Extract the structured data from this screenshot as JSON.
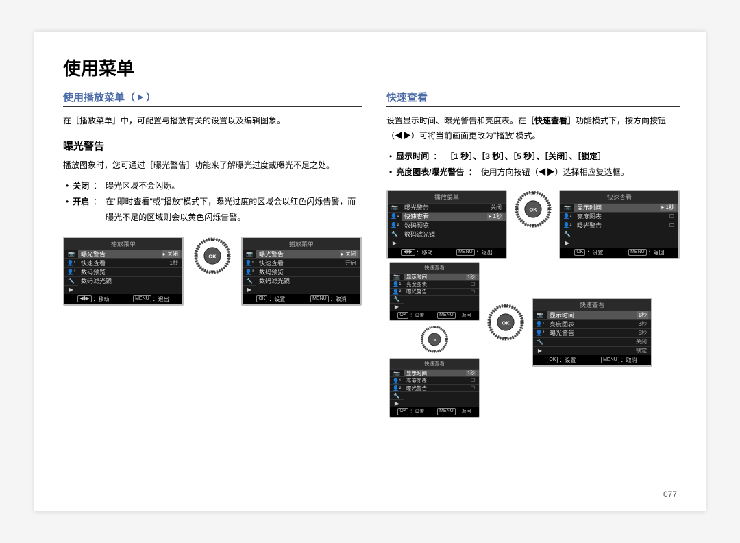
{
  "page": {
    "number": "077"
  },
  "title": "使用菜单",
  "left": {
    "section_title_prefix": "使用播放菜单（",
    "section_title_suffix": "）",
    "intro": "在［播放菜单］中，可配置与播放有关的设置以及编辑图象。",
    "sub_title": "曝光警告",
    "sub_intro": "播放图象时，您可通过［曝光警告］功能来了解曝光过度或曝光不足之处。",
    "bullets": [
      {
        "label": "关闭",
        "colon": "：",
        "text": "曝光区域不会闪烁。"
      },
      {
        "label": "开启",
        "colon": "：",
        "text": "在\"即时查看\"或\"播放\"模式下，曝光过度的区域会以红色闪烁告警，而曝光不足的区域则会以黄色闪烁告警。"
      }
    ]
  },
  "right": {
    "section_title": "快速查看",
    "intro_pre": "设置显示时间、曝光警告和亮度表。在",
    "intro_bold": "［快速查看］",
    "intro_mid": "功能模式下，按方向按钮（",
    "intro_post": "）可将当前画面更改为\"播放\"模式。",
    "bullets": [
      {
        "label": "显示时间",
        "colon": "：",
        "value": "［1 秒］、［3 秒］、［5 秒］、［关闭］、［锁定］"
      },
      {
        "label": "亮度图表/曝光警告",
        "colon": "：",
        "value_pre": "使用方向按钮（",
        "value_post": "）选择相应复选框。"
      }
    ]
  },
  "menus": {
    "playback_a": {
      "header": "播放菜单",
      "rows": [
        {
          "label": "曝光警告",
          "val": "关闭",
          "highlight": true,
          "mark": "▸"
        },
        {
          "label": "快速查看",
          "val": "1秒"
        },
        {
          "label": "数码预览",
          "val": ""
        },
        {
          "label": "数码滤光镜",
          "val": ""
        }
      ],
      "footer_left_badge": "◀⧫▶",
      "footer_left": "：移动",
      "footer_right_badge": "MENU",
      "footer_right": "：退出"
    },
    "playback_b": {
      "header": "播放菜单",
      "rows": [
        {
          "label": "曝光警告",
          "val": "关闭",
          "highlight": true,
          "mark": "▸"
        },
        {
          "label": "快速查看",
          "val": "开启"
        },
        {
          "label": "数码预览",
          "val": ""
        },
        {
          "label": "数码滤光镜",
          "val": ""
        }
      ],
      "footer_left_badge": "OK",
      "footer_left": "：设置",
      "footer_right_badge": "MENU",
      "footer_right": "：取消"
    },
    "playback_c": {
      "header": "播放菜单",
      "rows": [
        {
          "label": "曝光警告",
          "val": "关闭"
        },
        {
          "label": "快速查看",
          "val": "1秒",
          "highlight": true,
          "mark": "▸"
        },
        {
          "label": "数码预览",
          "val": ""
        },
        {
          "label": "数码滤光镜",
          "val": ""
        }
      ],
      "footer_left_badge": "◀⧫▶",
      "footer_left": "：移动",
      "footer_right_badge": "MENU",
      "footer_right": "：退出"
    },
    "quick_a": {
      "header": "快速查看",
      "rows": [
        {
          "label": "显示时间",
          "val": "1秒",
          "highlight": true,
          "mark": "▸"
        },
        {
          "label": "亮度图表",
          "val": "☐"
        },
        {
          "label": "曝光警告",
          "val": "☐"
        }
      ],
      "footer_left_badge": "OK",
      "footer_left": "：设置",
      "footer_right_badge": "MENU",
      "footer_right": "：返回"
    },
    "quick_b": {
      "header": "快速查看",
      "rows": [
        {
          "label": "显示时间",
          "val": "1秒",
          "highlight": true
        },
        {
          "label": "亮度图表",
          "val": "3秒"
        },
        {
          "label": "曝光警告",
          "val": "5秒"
        },
        {
          "label": "",
          "val": "关闭"
        },
        {
          "label": "",
          "val": "锁定"
        }
      ],
      "footer_left_badge": "OK",
      "footer_left": "：设置",
      "footer_right_badge": "MENU",
      "footer_right": "：取消"
    },
    "quick_mini1": {
      "header": "快速查看",
      "rows": [
        {
          "label": "显示时间",
          "val": "1秒",
          "highlight": true
        },
        {
          "label": "亮度图表",
          "val": "☐"
        },
        {
          "label": "曝光警告",
          "val": "☐"
        }
      ],
      "footer_left_badge": "OK",
      "footer_left": "：设置",
      "footer_right_badge": "MENU",
      "footer_right": "：返回"
    },
    "quick_mini2": {
      "header": "快速查看",
      "rows": [
        {
          "label": "显示时间",
          "val": "1秒",
          "highlight": true
        },
        {
          "label": "亮度图表",
          "val": "☐"
        },
        {
          "label": "曝光警告",
          "val": "☐"
        }
      ],
      "footer_left_badge": "OK",
      "footer_left": "：设置",
      "footer_right_badge": "MENU",
      "footer_right": "：返回"
    }
  },
  "icons": {
    "side": [
      "📷",
      "👤¹",
      "👤²",
      "🔧",
      "▶"
    ]
  }
}
